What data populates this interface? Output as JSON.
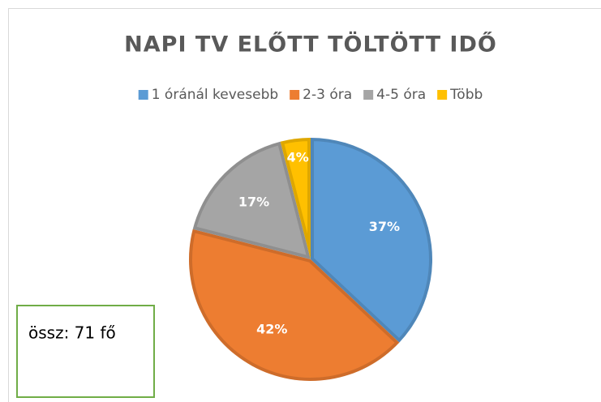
{
  "chart_data": {
    "type": "pie",
    "title": "NAPI TV ELŐTT TÖLTÖTT IDŐ",
    "categories": [
      "1 óránál kevesebb",
      "2-3 óra",
      "4-5 óra",
      "Több"
    ],
    "values": [
      37,
      42,
      17,
      4
    ],
    "value_labels": [
      "37%",
      "42%",
      "17%",
      "4%"
    ],
    "colors": [
      "#5b9bd5",
      "#ed7d31",
      "#a5a5a5",
      "#ffc000"
    ],
    "legend": "top",
    "annotation": "össz: 71 fő"
  }
}
